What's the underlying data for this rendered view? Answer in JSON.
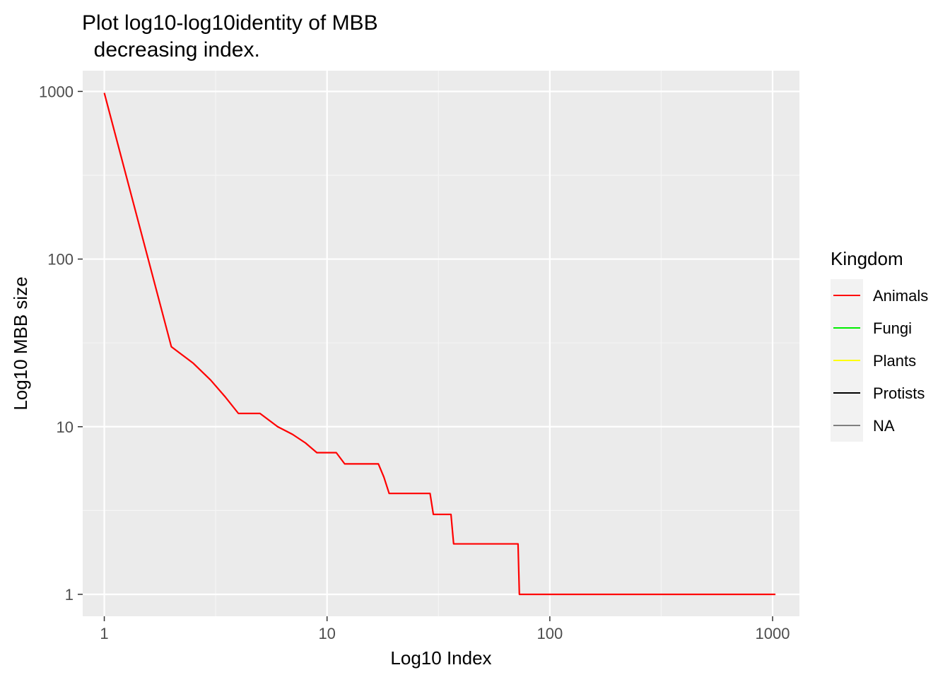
{
  "chart_data": {
    "type": "line",
    "title_lines": [
      "Plot log10-log10identity of MBB",
      "  decreasing index."
    ],
    "xlabel": "Log10 Index",
    "ylabel": "Log10 MBB size",
    "x_scale": "log10",
    "y_scale": "log10",
    "xlim": [
      0.8,
      1320
    ],
    "ylim": [
      0.74,
      1330
    ],
    "x_ticks": [
      {
        "value": 1,
        "label": "1"
      },
      {
        "value": 10,
        "label": "10"
      },
      {
        "value": 100,
        "label": "100"
      },
      {
        "value": 1000,
        "label": "1000"
      }
    ],
    "y_ticks": [
      {
        "value": 1,
        "label": "1"
      },
      {
        "value": 10,
        "label": "10"
      },
      {
        "value": 100,
        "label": "100"
      },
      {
        "value": 1000,
        "label": "1000"
      }
    ],
    "grid": true,
    "legend": {
      "title": "Kingdom",
      "position": "right",
      "entries": [
        {
          "label": "Animals",
          "color": "#ff0000"
        },
        {
          "label": "Fungi",
          "color": "#00ee00"
        },
        {
          "label": "Plants",
          "color": "#ffff00"
        },
        {
          "label": "Protists",
          "color": "#000000"
        },
        {
          "label": "NA",
          "color": "#7f7f7f"
        }
      ]
    },
    "series": [
      {
        "name": "Animals",
        "color": "#ff0000",
        "points": [
          [
            1,
            980
          ],
          [
            2,
            30
          ],
          [
            2.5,
            24
          ],
          [
            3,
            19
          ],
          [
            3.5,
            15
          ],
          [
            4,
            12
          ],
          [
            5,
            12
          ],
          [
            6,
            10
          ],
          [
            7,
            9
          ],
          [
            8,
            8
          ],
          [
            9,
            7
          ],
          [
            11,
            7
          ],
          [
            12,
            6
          ],
          [
            17,
            6
          ],
          [
            18,
            5
          ],
          [
            19,
            4
          ],
          [
            29,
            4
          ],
          [
            30,
            3
          ],
          [
            36,
            3
          ],
          [
            37,
            2
          ],
          [
            72,
            2
          ],
          [
            73,
            1
          ],
          [
            1030,
            1
          ]
        ]
      }
    ]
  },
  "colors": {
    "panel_background": "#ebebeb",
    "grid_major": "#ffffff",
    "grid_minor": "#f5f5f5",
    "legend_key_background": "#f2f2f2"
  }
}
